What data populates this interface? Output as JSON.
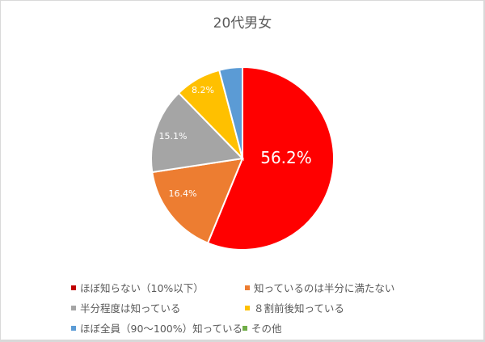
{
  "chart_data": {
    "type": "pie",
    "title": "20代男女",
    "start_angle": "12 o'clock, clockwise",
    "categories": [
      "ほぼ知らない（10%以下）",
      "知っているのは半分に満たない",
      "半分程度は知っている",
      "８割前後知っている",
      "ほぼ全員（90～100%）知っている",
      "その他"
    ],
    "values": [
      56.2,
      16.4,
      15.1,
      8.2,
      4.1,
      0.0
    ],
    "data_labels": [
      "56.2%",
      "16.4%",
      "15.1%",
      "8.2%",
      "",
      ""
    ],
    "colors": [
      "#ff0000",
      "#ed7d31",
      "#a5a5a5",
      "#ffc000",
      "#5b9bd5",
      "#70ad47"
    ],
    "legend_position": "bottom"
  },
  "legend": [
    {
      "label": "ほぼ知らない（10%以下）",
      "color": "#c00000"
    },
    {
      "label": "知っているのは半分に満たない",
      "color": "#ed7d31"
    },
    {
      "label": "半分程度は知っている",
      "color": "#a5a5a5"
    },
    {
      "label": "８割前後知っている",
      "color": "#ffc000"
    },
    {
      "label": "ほぼ全員（90～100%）知っている",
      "color": "#5b9bd5"
    },
    {
      "label": "その他",
      "color": "#70ad47"
    }
  ]
}
